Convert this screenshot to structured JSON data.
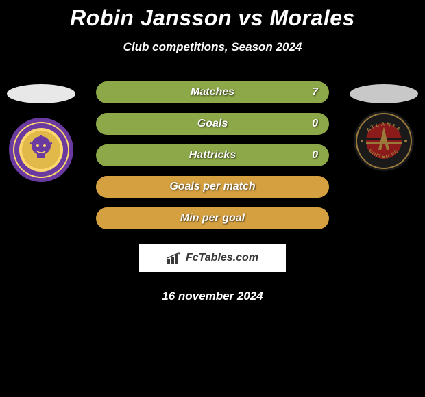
{
  "title": "Robin Jansson vs Morales",
  "subtitle": "Club competitions, Season 2024",
  "stats": [
    {
      "label": "Matches",
      "value": "7",
      "bg": "#8da848",
      "has_value": true
    },
    {
      "label": "Goals",
      "value": "0",
      "bg": "#8da848",
      "has_value": true
    },
    {
      "label": "Hattricks",
      "value": "0",
      "bg": "#8da848",
      "has_value": true
    },
    {
      "label": "Goals per match",
      "value": "",
      "bg": "#d4a040",
      "has_value": false
    },
    {
      "label": "Min per goal",
      "value": "",
      "bg": "#d4a040",
      "has_value": false
    }
  ],
  "brand": "FcTables.com",
  "date": "16 november 2024",
  "left_team": {
    "ellipse_color": "#e8e8e8",
    "badge_outer": "#6b3aa0",
    "badge_inner": "#fdd76e",
    "badge_accent": "#e0b94a"
  },
  "right_team": {
    "ellipse_color": "#c8c8c8",
    "badge_outer": "#1a1a1a",
    "badge_ring": "#9a7a3a",
    "badge_inner": "#8b1a1a",
    "badge_text_top": "ATLANTA",
    "badge_text_bottom": "UNITED FC"
  }
}
